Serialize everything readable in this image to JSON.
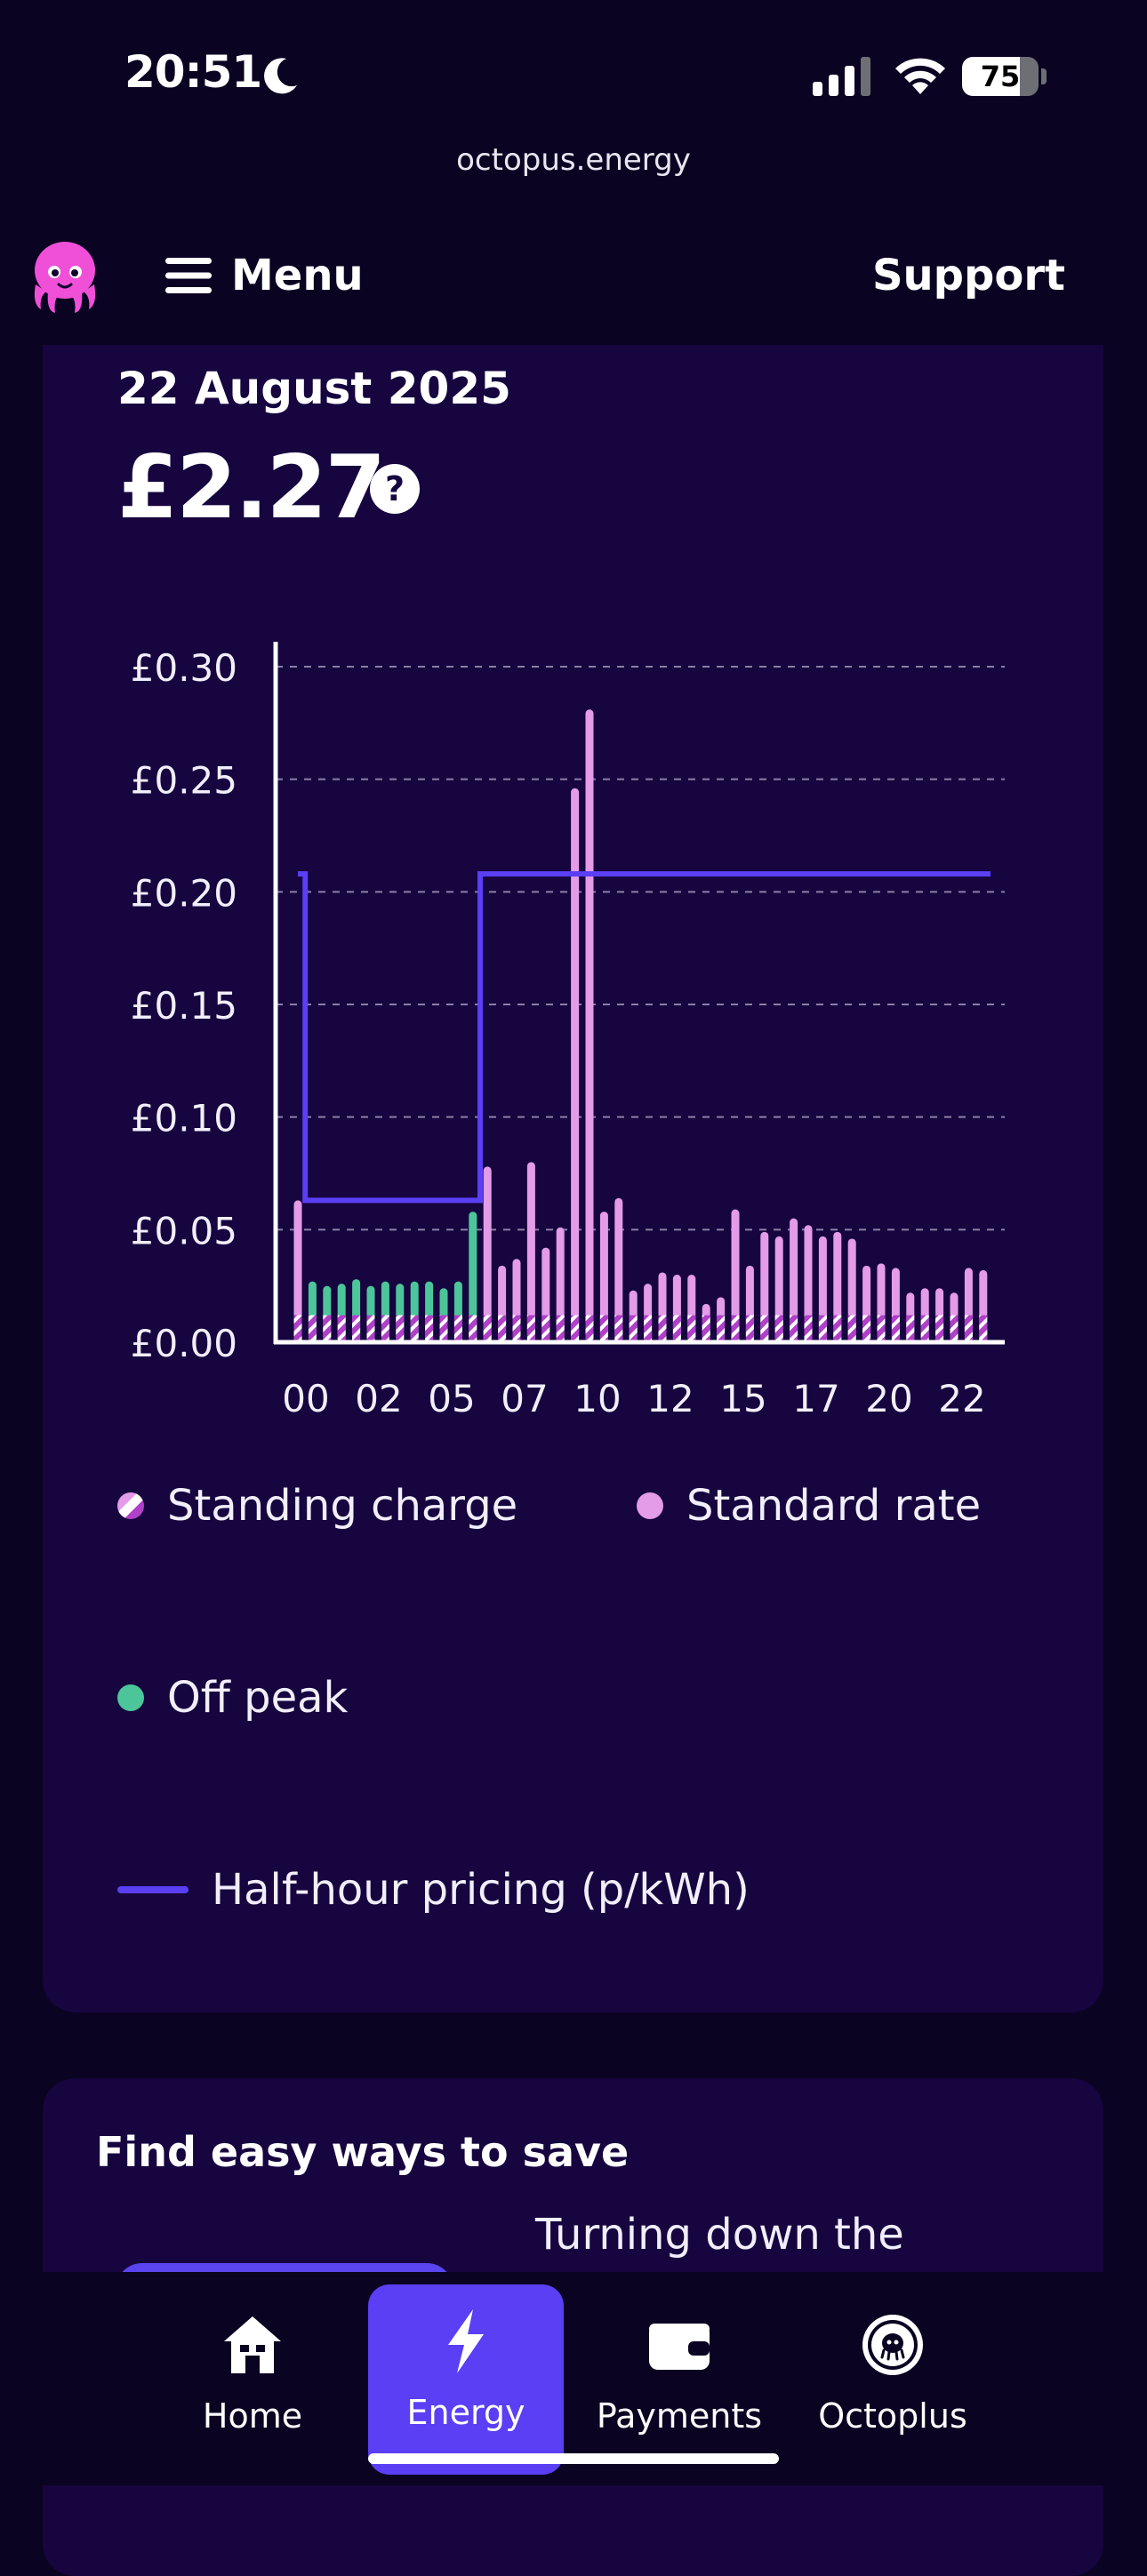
{
  "status_bar": {
    "time": "20:51",
    "battery": "75",
    "battery_level": 0.75,
    "url": "octopus.energy"
  },
  "header": {
    "menu_label": "Menu",
    "support_label": "Support",
    "logo_icon": "octopus-logo-icon",
    "menu_icon": "hamburger-icon"
  },
  "usage": {
    "date": "22 August 2025",
    "total": "£2.27",
    "help_label": "?"
  },
  "legend": {
    "standing": "Standing charge",
    "standard": "Standard rate",
    "offpeak": "Off peak",
    "pricing": "Half-hour pricing (p/kWh)"
  },
  "colors": {
    "background": "#0b0322",
    "card": "#16053f",
    "standard_rate": "#e49be8",
    "off_peak": "#4cc59a",
    "standing_charge": "#b040c8",
    "pricing_line": "#5a3ff5",
    "accent": "#5a3ff5"
  },
  "save_card": {
    "title": "Find easy ways to save",
    "text": "Turning down the"
  },
  "nav": {
    "items": [
      {
        "label": "Home",
        "icon": "home-icon"
      },
      {
        "label": "Energy",
        "icon": "lightning-icon"
      },
      {
        "label": "Payments",
        "icon": "wallet-icon"
      },
      {
        "label": "Octoplus",
        "icon": "octoplus-coin-icon"
      }
    ],
    "active": "Energy"
  },
  "chart_data": {
    "type": "bar",
    "y_tick_labels": [
      "£0.00",
      "£0.05",
      "£0.10",
      "£0.15",
      "£0.20",
      "£0.25",
      "£0.30"
    ],
    "y_ticks": [
      0,
      0.05,
      0.1,
      0.15,
      0.2,
      0.25,
      0.3
    ],
    "x_tick_labels": [
      "00",
      "02",
      "05",
      "07",
      "10",
      "12",
      "15",
      "17",
      "20",
      "22"
    ],
    "x_tick_index": [
      0,
      5,
      10,
      15,
      20,
      25,
      30,
      35,
      40,
      45
    ],
    "ylim": [
      0,
      0.3
    ],
    "grid": true,
    "standing_charge_per_slot": 0.012,
    "values": [
      0.063,
      0.027,
      0.025,
      0.026,
      0.028,
      0.025,
      0.027,
      0.026,
      0.027,
      0.027,
      0.024,
      0.027,
      0.058,
      0.078,
      0.034,
      0.037,
      0.08,
      0.042,
      0.051,
      0.246,
      0.281,
      0.058,
      0.064,
      0.023,
      0.026,
      0.031,
      0.03,
      0.03,
      0.017,
      0.02,
      0.059,
      0.034,
      0.049,
      0.047,
      0.055,
      0.052,
      0.047,
      0.049,
      0.046,
      0.034,
      0.035,
      0.033,
      0.022,
      0.024,
      0.024,
      0.022,
      0.033,
      0.032
    ],
    "rate_type": [
      "standard",
      "offpeak",
      "offpeak",
      "offpeak",
      "offpeak",
      "offpeak",
      "offpeak",
      "offpeak",
      "offpeak",
      "offpeak",
      "offpeak",
      "offpeak",
      "offpeak",
      "standard",
      "standard",
      "standard",
      "standard",
      "standard",
      "standard",
      "standard",
      "standard",
      "standard",
      "standard",
      "standard",
      "standard",
      "standard",
      "standard",
      "standard",
      "standard",
      "standard",
      "standard",
      "standard",
      "standard",
      "standard",
      "standard",
      "standard",
      "standard",
      "standard",
      "standard",
      "standard",
      "standard",
      "standard",
      "standard",
      "standard",
      "standard",
      "standard",
      "standard",
      "standard"
    ],
    "pricing_line": {
      "name": "Half-hour pricing (p/kWh)",
      "scale_note": "drawn on same axis",
      "segments": [
        {
          "from": 0,
          "to": 0.5,
          "value": 0.208
        },
        {
          "from": 0.5,
          "to": 12.5,
          "value": 0.063
        },
        {
          "from": 12.5,
          "to": 47.5,
          "value": 0.208
        }
      ]
    }
  }
}
